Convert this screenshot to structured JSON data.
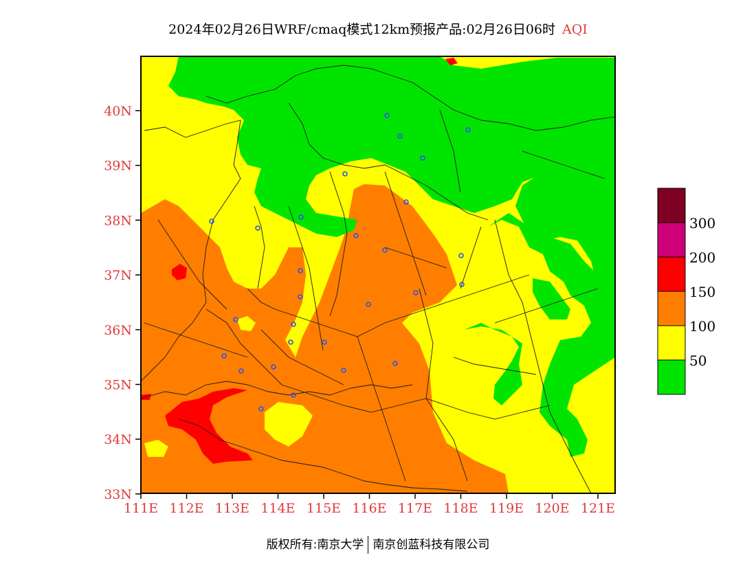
{
  "title": {
    "main": "2024年02月26日WRF/cmaq模式12km预报产品:02月26日06时",
    "variable": "AQI"
  },
  "axes": {
    "lat_ticks": [
      "40N",
      "39N",
      "38N",
      "37N",
      "36N",
      "35N",
      "34N",
      "33N"
    ],
    "lon_ticks": [
      "111E",
      "112E",
      "113E",
      "114E",
      "115E",
      "116E",
      "117E",
      "118E",
      "119E",
      "120E",
      "121E"
    ],
    "tick_color": "#e03a3a"
  },
  "legend": {
    "labels": [
      "50",
      "100",
      "150",
      "200",
      "300"
    ],
    "colors": [
      "#00e400",
      "#ffff00",
      "#ff7e00",
      "#ff0000",
      "#cc0077",
      "#7e0023"
    ]
  },
  "footer": {
    "copyright": "版权所有:南京大学",
    "company": "南京创蓝科技有限公司"
  }
}
